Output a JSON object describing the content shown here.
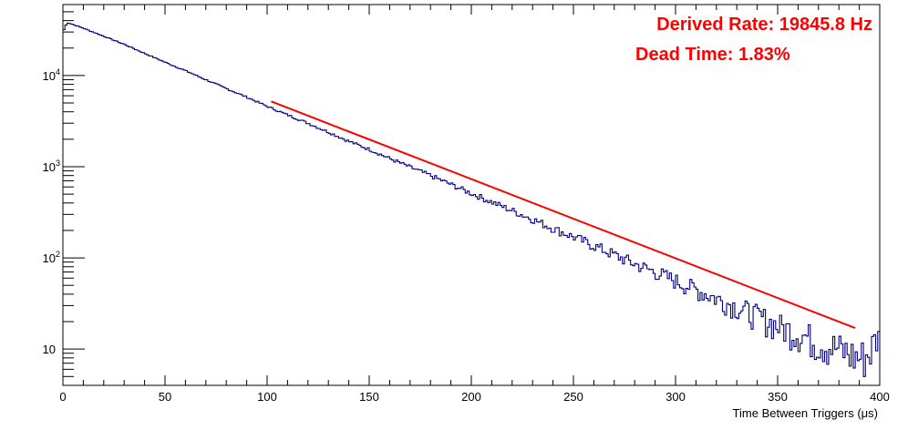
{
  "chart_data": {
    "type": "histogram",
    "scale": {
      "x": "linear",
      "y": "log"
    },
    "xlabel": "Time Between Triggers (μs)",
    "ylabel": "",
    "xlim": [
      0,
      400
    ],
    "ylim": [
      4,
      60000
    ],
    "x_ticks": [
      {
        "value": 0,
        "label": "0"
      },
      {
        "value": 50,
        "label": "50"
      },
      {
        "value": 100,
        "label": "100"
      },
      {
        "value": 150,
        "label": "150"
      },
      {
        "value": 200,
        "label": "200"
      },
      {
        "value": 250,
        "label": "250"
      },
      {
        "value": 300,
        "label": "300"
      },
      {
        "value": 350,
        "label": "350"
      },
      {
        "value": 400,
        "label": "400"
      }
    ],
    "y_ticks": [
      {
        "value": 10,
        "base": "10",
        "exp": ""
      },
      {
        "value": 100,
        "base": "10",
        "exp": "2"
      },
      {
        "value": 1000,
        "base": "10",
        "exp": "3"
      },
      {
        "value": 10000,
        "base": "10",
        "exp": "4"
      }
    ],
    "grid": false,
    "annotations": [
      {
        "text": "Derived Rate: 19845.8 Hz"
      },
      {
        "text": "Dead Time: 1.83%"
      }
    ],
    "series": [
      {
        "kind": "histogram",
        "color": "#000080",
        "bin_width": 1,
        "x": [
          0,
          2,
          4,
          10,
          20,
          30,
          40,
          50,
          60,
          70,
          80,
          90,
          100,
          110,
          120,
          130,
          140,
          150,
          160,
          170,
          180,
          190,
          200,
          210,
          220,
          230,
          240,
          250,
          260,
          270,
          280,
          290,
          300,
          310,
          320,
          330,
          340,
          350,
          360,
          370,
          380,
          390,
          395,
          398
        ],
        "y": [
          30000,
          38000,
          37000,
          33000,
          27000,
          22000,
          17500,
          14000,
          11300,
          9000,
          7200,
          5800,
          4600,
          3700,
          3000,
          2400,
          1900,
          1550,
          1230,
          990,
          800,
          640,
          510,
          410,
          330,
          265,
          210,
          170,
          136,
          108,
          86,
          70,
          56,
          45,
          36,
          29,
          23,
          18,
          15,
          12,
          10,
          8,
          9,
          13
        ]
      },
      {
        "kind": "fit",
        "color": "#ff0000",
        "x": [
          102,
          388
        ],
        "y": [
          5200,
          17
        ]
      }
    ]
  }
}
